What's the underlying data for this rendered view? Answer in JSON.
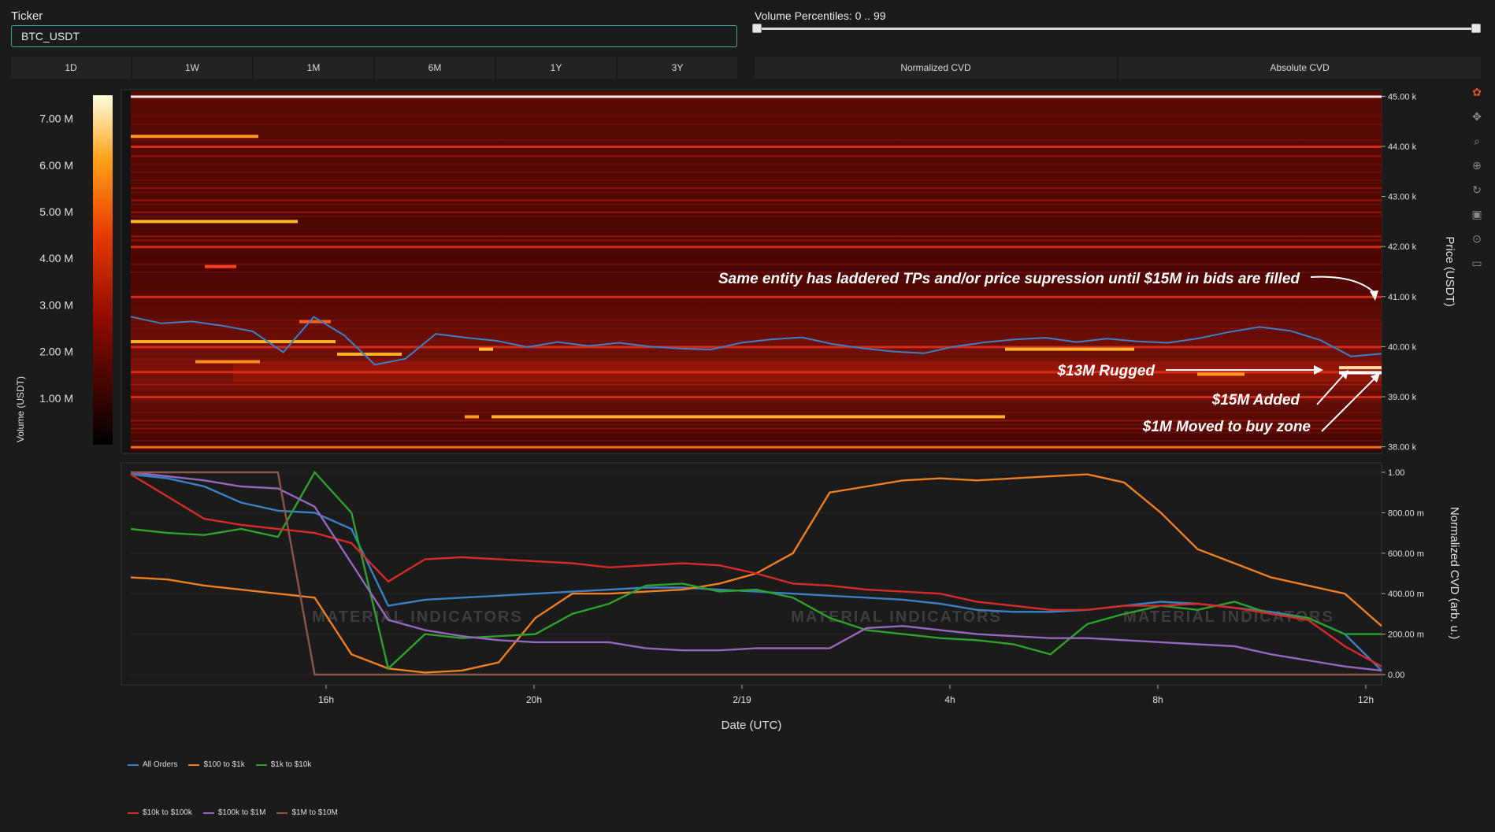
{
  "ticker": {
    "label": "Ticker",
    "value": "BTC_USDT"
  },
  "volume_percentiles": {
    "label": "Volume Percentiles: 0 .. 99",
    "min": 0,
    "max": 99
  },
  "timeframes": [
    "1D",
    "1W",
    "1M",
    "6M",
    "1Y",
    "3Y"
  ],
  "cvd_modes": [
    "Normalized CVD",
    "Absolute CVD"
  ],
  "colorbar": {
    "title": "Volume (USDT)",
    "ticks": [
      "7.00 M",
      "6.00 M",
      "5.00 M",
      "4.00 M",
      "3.00 M",
      "2.00 M",
      "1.00 M"
    ]
  },
  "heatmap": {
    "price_axis_title": "Price (USDT)",
    "price_ticks": [
      "45.00 k",
      "44.00 k",
      "43.00 k",
      "42.00 k",
      "41.00 k",
      "40.00 k",
      "39.00 k",
      "38.00 k"
    ],
    "annotations": [
      "Same entity has laddered TPs and/or price supression until $15M in bids are filled",
      "$13M Rugged",
      "$15M Added",
      "$1M Moved to buy zone"
    ]
  },
  "cvd_chart": {
    "y_axis_title": "Normalized CVD (arb. u.)",
    "y_ticks": [
      "1.00",
      "800.00 m",
      "600.00 m",
      "400.00 m",
      "200.00 m",
      "0.00"
    ],
    "x_ticks": [
      "16h",
      "20h",
      "2/19",
      "4h",
      "8h",
      "12h"
    ],
    "x_axis_title": "Date (UTC)"
  },
  "watermark": "MATERIAL INDICATORS",
  "legend": [
    {
      "name": "All Orders",
      "color": "#3b7fc4"
    },
    {
      "name": "$100 to $1k",
      "color": "#ef7f22"
    },
    {
      "name": "$1k to $10k",
      "color": "#2ea02c"
    },
    {
      "name": "$10k to $100k",
      "color": "#d62a2a"
    },
    {
      "name": "$100k to $1M",
      "color": "#9467bd"
    },
    {
      "name": "$1M to $10M",
      "color": "#8c564b"
    }
  ],
  "chart_data": [
    {
      "type": "heatmap",
      "y_range_price_usdt": [
        37900,
        45100
      ],
      "color_range_volume_usdt": [
        0,
        7500000
      ],
      "price_line_usdt": [
        40600,
        40500,
        40550,
        40450,
        40300,
        39850,
        40550,
        40200,
        39650,
        39800,
        40300,
        40200,
        40100,
        39950,
        40050,
        40000,
        40100,
        40050,
        40000,
        39950,
        40050,
        40100,
        40150,
        40050,
        40000,
        39950,
        39900,
        40000,
        40050,
        40100,
        40150,
        40100,
        40200,
        40150,
        40100,
        40150,
        40250,
        40350,
        40300,
        40150,
        39850,
        39900
      ],
      "levels_usdt": [
        45000,
        44000,
        42000,
        41000,
        40000,
        39500,
        39000,
        38000
      ]
    },
    {
      "type": "line",
      "x_range": [
        "12h",
        "12h"
      ],
      "y_range": [
        0,
        1
      ],
      "series": [
        {
          "name": "All Orders",
          "values": [
            0.99,
            0.97,
            0.93,
            0.85,
            0.81,
            0.8,
            0.72,
            0.34,
            0.37,
            0.38,
            0.39,
            0.4,
            0.41,
            0.42,
            0.43,
            0.43,
            0.42,
            0.41,
            0.4,
            0.39,
            0.38,
            0.37,
            0.35,
            0.32,
            0.31,
            0.31,
            0.32,
            0.34,
            0.36,
            0.35,
            0.33,
            0.31,
            0.28,
            0.2,
            0.02
          ]
        },
        {
          "name": "$100 to $1k",
          "values": [
            0.48,
            0.47,
            0.44,
            0.42,
            0.4,
            0.38,
            0.1,
            0.03,
            0.01,
            0.02,
            0.06,
            0.28,
            0.4,
            0.4,
            0.41,
            0.42,
            0.45,
            0.5,
            0.6,
            0.9,
            0.93,
            0.96,
            0.97,
            0.96,
            0.97,
            0.98,
            0.99,
            0.95,
            0.8,
            0.62,
            0.55,
            0.48,
            0.44,
            0.4,
            0.24
          ]
        },
        {
          "name": "$1k to $10k",
          "values": [
            0.72,
            0.7,
            0.69,
            0.72,
            0.68,
            1.0,
            0.8,
            0.03,
            0.2,
            0.18,
            0.19,
            0.2,
            0.3,
            0.35,
            0.44,
            0.45,
            0.41,
            0.42,
            0.38,
            0.28,
            0.22,
            0.2,
            0.18,
            0.17,
            0.15,
            0.1,
            0.25,
            0.3,
            0.34,
            0.32,
            0.36,
            0.3,
            0.28,
            0.2,
            0.2
          ]
        },
        {
          "name": "$10k to $100k",
          "values": [
            0.99,
            0.88,
            0.77,
            0.74,
            0.72,
            0.7,
            0.65,
            0.46,
            0.57,
            0.58,
            0.57,
            0.56,
            0.55,
            0.53,
            0.54,
            0.55,
            0.54,
            0.5,
            0.45,
            0.44,
            0.42,
            0.41,
            0.4,
            0.36,
            0.34,
            0.32,
            0.32,
            0.34,
            0.34,
            0.35,
            0.33,
            0.3,
            0.27,
            0.14,
            0.04
          ]
        },
        {
          "name": "$100k to $1M",
          "values": [
            1.0,
            0.98,
            0.96,
            0.93,
            0.92,
            0.83,
            0.55,
            0.27,
            0.22,
            0.19,
            0.17,
            0.16,
            0.16,
            0.16,
            0.13,
            0.12,
            0.12,
            0.13,
            0.13,
            0.13,
            0.23,
            0.24,
            0.22,
            0.2,
            0.19,
            0.18,
            0.18,
            0.17,
            0.16,
            0.15,
            0.14,
            0.1,
            0.07,
            0.04,
            0.02
          ]
        },
        {
          "name": "$1M to $10M",
          "values": [
            1.0,
            1.0,
            1.0,
            1.0,
            1.0,
            0.0,
            0.0,
            0.0,
            0.0,
            0.0,
            0.0,
            0.0,
            0.0,
            0.0,
            0.0,
            0.0,
            0.0,
            0.0,
            0.0,
            0.0,
            0.0,
            0.0,
            0.0,
            0.0,
            0.0,
            0.0,
            0.0,
            0.0,
            0.0,
            0.0,
            0.0,
            0.0,
            0.0,
            0.0,
            0.0
          ]
        }
      ]
    }
  ]
}
